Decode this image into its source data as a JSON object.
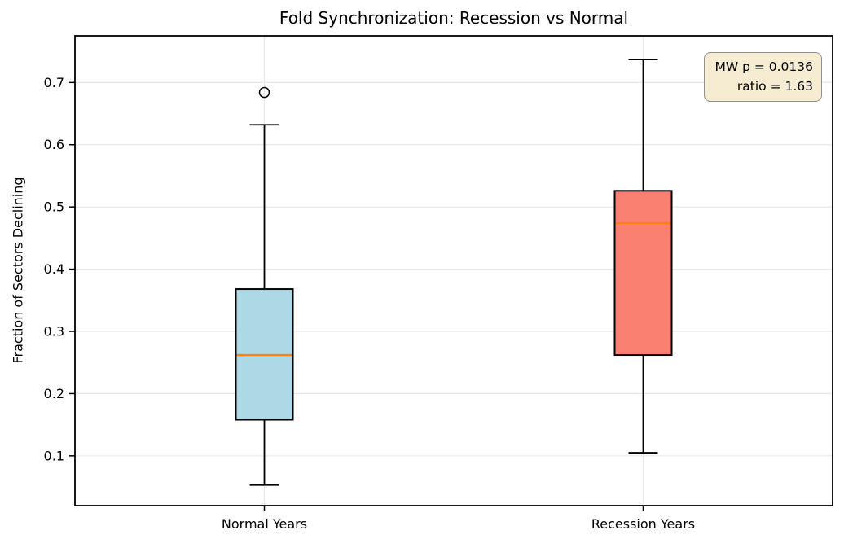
{
  "chart_data": {
    "type": "boxplot",
    "title": "Fold Synchronization: Recession vs Normal",
    "xlabel": "",
    "ylabel": "Fraction of Sectors Declining",
    "categories": [
      "Normal Years",
      "Recession Years"
    ],
    "series": [
      {
        "name": "Normal Years",
        "whisker_low": 0.053,
        "q1": 0.158,
        "median": 0.262,
        "q3": 0.368,
        "whisker_high": 0.632,
        "outliers": [
          0.684
        ],
        "fill": "#ADD8E6"
      },
      {
        "name": "Recession Years",
        "whisker_low": 0.105,
        "q1": 0.262,
        "median": 0.474,
        "q3": 0.526,
        "whisker_high": 0.737,
        "outliers": [],
        "fill": "#FA8072"
      }
    ],
    "yticks": [
      0.1,
      0.2,
      0.3,
      0.4,
      0.5,
      0.6,
      0.7
    ],
    "ytick_labels": [
      "0.1",
      "0.2",
      "0.3",
      "0.4",
      "0.5",
      "0.6",
      "0.7"
    ],
    "ylim": [
      0.02,
      0.775
    ],
    "grid": true,
    "legend": "none",
    "colors": {
      "median_line": "#FF7F0E",
      "box_edge": "#000000",
      "grid_line": "#e8e8e8",
      "annotation_bg": "#f6ecd2",
      "annotation_border": "#8f8f8f"
    },
    "annotation": {
      "line1": "MW p = 0.0136",
      "line2": "ratio = 1.63"
    }
  }
}
